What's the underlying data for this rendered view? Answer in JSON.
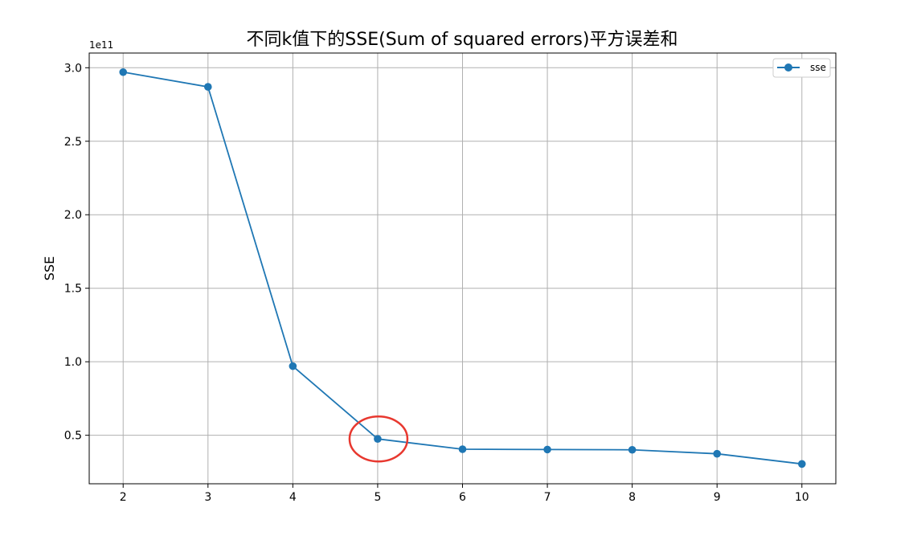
{
  "chart_data": {
    "type": "line",
    "title": "不同k值下的SSE(Sum of squared errors)平方误差和",
    "xlabel": "",
    "ylabel": "SSE",
    "y_offset_label": "1e11",
    "x": [
      2,
      3,
      4,
      5,
      6,
      7,
      8,
      9,
      10
    ],
    "series": [
      {
        "name": "sse",
        "color": "#1f77b4",
        "marker": "circle",
        "values": [
          297000000000.0,
          287000000000.0,
          97000000000.0,
          47500000000.0,
          40500000000.0,
          40300000000.0,
          40100000000.0,
          37400000000.0,
          30500000000.0
        ]
      }
    ],
    "x_ticks": [
      "2",
      "3",
      "4",
      "5",
      "6",
      "7",
      "8",
      "9",
      "10"
    ],
    "y_ticks": [
      50000000000.0,
      100000000000.0,
      150000000000.0,
      200000000000.0,
      250000000000.0,
      300000000000.0
    ],
    "y_tick_labels": [
      "0.5",
      "1.0",
      "1.5",
      "2.0",
      "2.5",
      "3.0"
    ],
    "xlim": [
      1.6,
      10.4
    ],
    "ylim": [
      17000000000.0,
      310000000000.0
    ],
    "grid": true,
    "legend_position": "top-right",
    "annotation": {
      "type": "ellipse",
      "at_x": 5,
      "at_value": 47500000000.0,
      "color": "#e8382f"
    }
  }
}
